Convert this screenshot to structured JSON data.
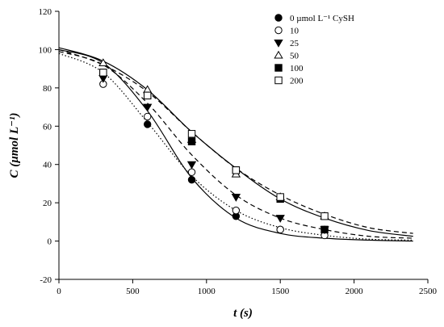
{
  "chart_data": {
    "type": "scatter",
    "xlabel": "t (s)",
    "ylabel": "C (µmol L⁻¹)",
    "xlim": [
      0,
      2500
    ],
    "ylim": [
      -20,
      120
    ],
    "x_ticks": [
      0,
      500,
      1000,
      1500,
      2000,
      2500
    ],
    "y_ticks": [
      -20,
      0,
      20,
      40,
      60,
      80,
      100,
      120
    ],
    "grid": false,
    "legend_position": "top-right",
    "legend_unit": "µmol L⁻¹ CySH",
    "x": [
      300,
      600,
      900,
      1200,
      1500,
      1800
    ],
    "series": [
      {
        "name": "0",
        "marker": "filled-circle",
        "values": [
          87,
          61,
          32,
          13,
          6,
          6
        ]
      },
      {
        "name": "10",
        "marker": "open-circle",
        "values": [
          82,
          65,
          36,
          16,
          6,
          3
        ]
      },
      {
        "name": "25",
        "marker": "filled-triangle-down",
        "values": [
          85,
          70,
          40,
          23,
          12,
          6
        ]
      },
      {
        "name": "50",
        "marker": "open-triangle-up",
        "values": [
          93,
          79,
          53,
          35,
          23,
          13
        ]
      },
      {
        "name": "100",
        "marker": "filled-square",
        "values": [
          88,
          76,
          52,
          37,
          22,
          6
        ]
      },
      {
        "name": "200",
        "marker": "open-square",
        "values": [
          88,
          76,
          56,
          37,
          23,
          13
        ]
      }
    ],
    "fits": [
      {
        "style": "solid",
        "x": [
          0,
          300,
          600,
          900,
          1200,
          1500,
          1800,
          2100,
          2400
        ],
        "values": [
          100,
          93,
          68,
          33,
          12,
          4,
          1.5,
          0.5,
          0
        ]
      },
      {
        "style": "dotted",
        "x": [
          0,
          300,
          600,
          900,
          1200,
          1500,
          1800,
          2100,
          2400
        ],
        "values": [
          98,
          88,
          62,
          34,
          16,
          7,
          3,
          1,
          0.5
        ]
      },
      {
        "style": "dashed",
        "x": [
          0,
          300,
          600,
          900,
          1200,
          1500,
          1800,
          2100,
          2400
        ],
        "values": [
          99,
          92,
          72,
          45,
          24,
          12,
          6,
          2.5,
          1.5
        ]
      },
      {
        "style": "solid",
        "x": [
          0,
          300,
          600,
          900,
          1200,
          1500,
          1800,
          2100,
          2400
        ],
        "values": [
          101,
          94,
          79,
          57,
          38,
          22,
          12,
          5.5,
          2.5
        ]
      },
      {
        "style": "dashed",
        "x": [
          0,
          300,
          600,
          900,
          1200,
          1500,
          1800,
          2100,
          2400
        ],
        "values": [
          100,
          92,
          78,
          57,
          38,
          24,
          14,
          7,
          4
        ]
      }
    ]
  }
}
